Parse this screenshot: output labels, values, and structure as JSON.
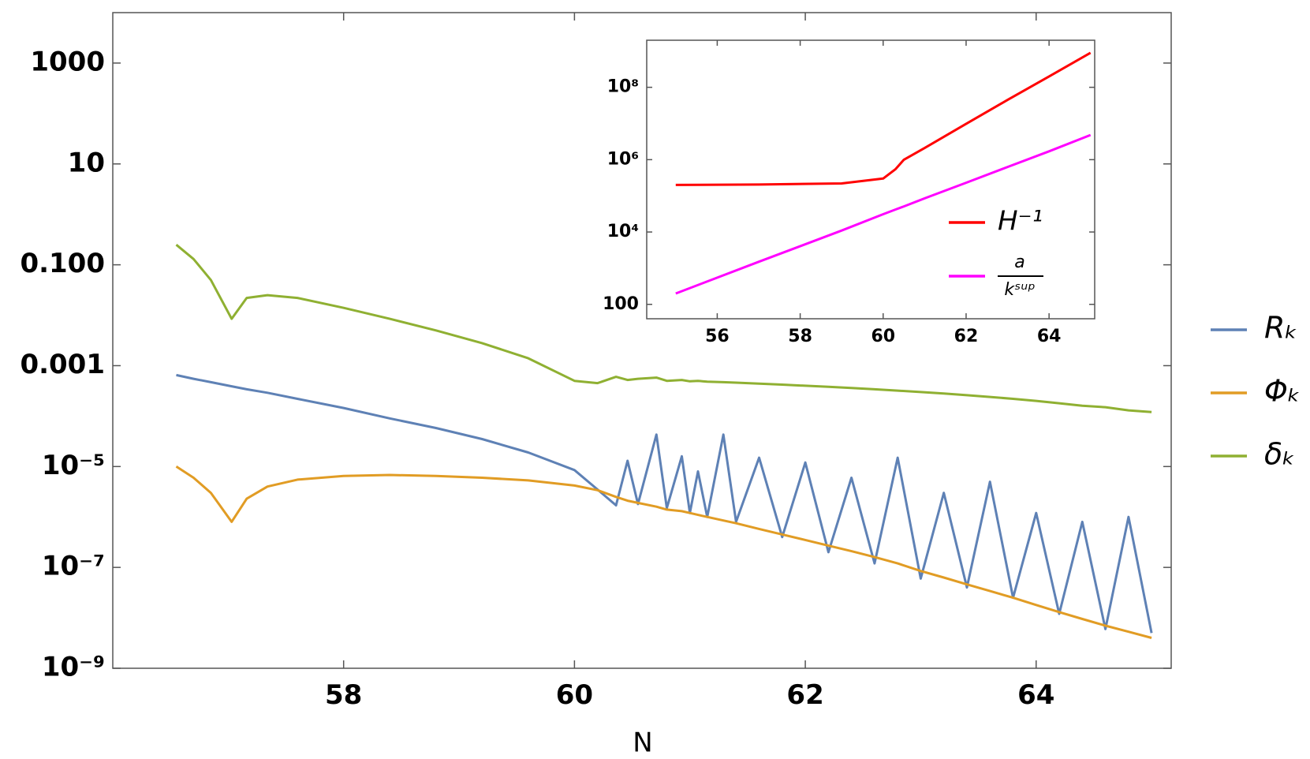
{
  "chart_data": [
    {
      "type": "line",
      "x_label": "N",
      "log_y": true,
      "legend": "right",
      "xlim": [
        56,
        65.17
      ],
      "xticks": [
        58,
        60,
        62,
        64
      ],
      "ylim": [
        1e-09,
        10000
      ],
      "yticks": [
        1000,
        10,
        {
          "value": 0.1,
          "label": "0.100"
        },
        0.001,
        {
          "value": 1e-05,
          "label": "10⁻⁵"
        },
        {
          "value": 1e-07,
          "label": "10⁻⁷"
        },
        {
          "value": 1e-09,
          "label": "10⁻⁹"
        }
      ],
      "x": [
        56.55,
        56.7,
        56.85,
        57.03,
        57.16,
        57.34,
        57.6,
        58.0,
        58.4,
        58.8,
        59.2,
        59.6,
        60.0,
        60.2,
        60.36,
        60.46,
        60.55,
        60.71,
        60.8,
        60.93,
        61.0,
        61.07,
        61.15,
        61.29,
        61.4,
        61.6,
        61.8,
        62.0,
        62.2,
        62.4,
        62.6,
        62.8,
        63.0,
        63.2,
        63.4,
        63.6,
        63.8,
        64.0,
        64.2,
        64.4,
        64.6,
        64.8,
        65.0
      ],
      "series": [
        {
          "name": "Rₖ",
          "color": "#5e81b5",
          "values": [
            0.00065,
            0.00055,
            0.00047,
            0.00039,
            0.00034,
            0.00029,
            0.00022,
            0.000145,
            9e-05,
            5.8e-05,
            3.5e-05,
            1.9e-05,
            8.5e-06,
            3.5e-06,
            1.7e-06,
            1.3e-05,
            1.8e-06,
            4.3e-05,
            1.5e-06,
            1.6e-05,
            1.2e-06,
            8e-06,
            1e-06,
            4.3e-05,
            8e-07,
            1.5e-05,
            4e-07,
            1.2e-05,
            2e-07,
            6e-06,
            1.2e-07,
            1.5e-05,
            6e-08,
            3e-06,
            4e-08,
            5e-06,
            2.5e-08,
            1.2e-06,
            1.2e-08,
            8e-07,
            6e-09,
            1e-06,
            5e-09
          ]
        },
        {
          "name": "Φₖ",
          "color": "#e19c24",
          "values": [
            1e-05,
            6e-06,
            3e-06,
            8e-07,
            2.3e-06,
            4e-06,
            5.5e-06,
            6.5e-06,
            6.8e-06,
            6.5e-06,
            6e-06,
            5.3e-06,
            4.2e-06,
            3.4e-06,
            2.5e-06,
            2.1e-06,
            1.9e-06,
            1.6e-06,
            1.4e-06,
            1.3e-06,
            1.2e-06,
            1.1e-06,
            1e-06,
            8.5e-07,
            7.5e-07,
            5.8e-07,
            4.5e-07,
            3.5e-07,
            2.7e-07,
            2.1e-07,
            1.6e-07,
            1.2e-07,
            8.5e-08,
            6.3e-08,
            4.6e-08,
            3.4e-08,
            2.5e-08,
            1.8e-08,
            1.3e-08,
            9.5e-09,
            7e-09,
            5.3e-09,
            4e-09
          ]
        },
        {
          "name": "δₖ",
          "color": "#8fb032",
          "values": [
            0.25,
            0.13,
            0.05,
            0.0085,
            0.022,
            0.025,
            0.022,
            0.014,
            0.0085,
            0.005,
            0.0028,
            0.0014,
            0.0005,
            0.00045,
            0.0006,
            0.00052,
            0.00055,
            0.00058,
            0.0005,
            0.00052,
            0.00049,
            0.0005,
            0.00048,
            0.00047,
            0.00046,
            0.00044,
            0.00042,
            0.0004,
            0.00038,
            0.00036,
            0.00034,
            0.00032,
            0.0003,
            0.00028,
            0.00026,
            0.00024,
            0.00022,
            0.0002,
            0.00018,
            0.00016,
            0.00015,
            0.00013,
            0.00012
          ]
        }
      ]
    },
    {
      "type": "line",
      "log_y": true,
      "legend": "lower right",
      "xlim": [
        54.3,
        65.1
      ],
      "xticks": [
        56,
        58,
        60,
        62,
        64
      ],
      "ylim": [
        40,
        2000000000
      ],
      "yticks": [
        {
          "value": 100000000,
          "label": "10⁸"
        },
        {
          "value": 1000000,
          "label": "10⁶"
        },
        {
          "value": 10000,
          "label": "10⁴"
        },
        100
      ],
      "x": [
        55,
        57,
        59,
        60,
        60.3,
        60.5,
        61,
        62,
        63,
        64,
        65
      ],
      "series": [
        {
          "name": "H⁻¹",
          "color": "#ff0000",
          "values": [
            200000,
            205000,
            220000,
            300000,
            550000,
            1000000,
            2100000,
            9800000,
            45000000,
            200000000,
            900000000
          ]
        },
        {
          "name": {
            "numerator": "a",
            "denominator": "kˢᵘᵖ"
          },
          "color": "#ff00ff",
          "values": [
            200,
            1500,
            11000,
            31000,
            42000,
            51000,
            85000,
            230000,
            630000,
            1700000,
            4800000
          ]
        }
      ]
    }
  ]
}
